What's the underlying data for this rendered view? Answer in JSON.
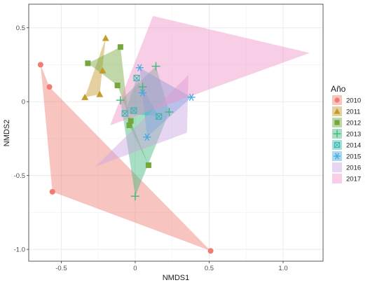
{
  "chart_data": {
    "type": "scatter",
    "title": "",
    "xlabel": "NMDS1",
    "ylabel": "NMDS2",
    "xlim": [
      -0.72,
      1.27
    ],
    "ylim": [
      -1.08,
      0.66
    ],
    "x_ticks": [
      -0.5,
      0.0,
      0.5,
      1.0
    ],
    "x_tick_labels": [
      "-0.5",
      "0",
      "0.5",
      "1.0"
    ],
    "y_ticks": [
      -1.0,
      -0.5,
      0.0,
      0.5
    ],
    "y_tick_labels": [
      "-1.0",
      "-0.5",
      "0",
      "0.5"
    ],
    "grid": true,
    "background": "#ffffff",
    "grid_color": "#ebebeb",
    "legend": {
      "title": "Año",
      "position": "right"
    },
    "series": [
      {
        "name": "2010",
        "color": "#f07c72",
        "marker": "circle",
        "points": [
          [
            -0.64,
            0.25
          ],
          [
            -0.58,
            0.1
          ],
          [
            -0.56,
            -0.61
          ],
          [
            0.51,
            -1.01
          ]
        ],
        "hull": [
          [
            -0.64,
            0.25
          ],
          [
            -0.56,
            -0.61
          ],
          [
            0.51,
            -1.01
          ],
          [
            -0.58,
            0.1
          ]
        ]
      },
      {
        "name": "2011",
        "color": "#c49a2a",
        "marker": "triangle",
        "points": [
          [
            -0.34,
            0.03
          ],
          [
            -0.24,
            0.05
          ],
          [
            -0.2,
            0.43
          ],
          [
            -0.22,
            0.21
          ]
        ],
        "hull": [
          [
            -0.34,
            0.03
          ],
          [
            -0.2,
            0.43
          ],
          [
            -0.24,
            0.05
          ]
        ]
      },
      {
        "name": "2012",
        "color": "#74a83c",
        "marker": "square",
        "points": [
          [
            -0.32,
            0.26
          ],
          [
            -0.1,
            0.37
          ],
          [
            -0.12,
            0.11
          ],
          [
            -0.04,
            -0.16
          ],
          [
            0.09,
            -0.43
          ],
          [
            -0.03,
            -0.13
          ]
        ],
        "hull": [
          [
            -0.32,
            0.26
          ],
          [
            -0.1,
            0.37
          ],
          [
            -0.04,
            -0.16
          ],
          [
            0.09,
            -0.43
          ],
          [
            -0.03,
            -0.13
          ],
          [
            -0.12,
            0.11
          ]
        ]
      },
      {
        "name": "2013",
        "color": "#3fb87c",
        "marker": "plus",
        "points": [
          [
            -0.1,
            0.01
          ],
          [
            0.14,
            0.24
          ],
          [
            0.23,
            -0.07
          ],
          [
            0.0,
            -0.64
          ],
          [
            0.05,
            0.1
          ]
        ],
        "hull": [
          [
            -0.1,
            0.01
          ],
          [
            0.14,
            0.24
          ],
          [
            0.23,
            -0.07
          ],
          [
            0.0,
            -0.64
          ]
        ]
      },
      {
        "name": "2014",
        "color": "#3cb8b0",
        "marker": "square-x",
        "points": [
          [
            -0.07,
            -0.08
          ],
          [
            0.01,
            0.16
          ],
          [
            0.16,
            -0.1
          ],
          [
            -0.01,
            -0.06
          ]
        ],
        "hull": [
          [
            -0.07,
            -0.08
          ],
          [
            0.01,
            0.16
          ],
          [
            0.16,
            -0.1
          ]
        ]
      },
      {
        "name": "2015",
        "color": "#47a8e0",
        "marker": "asterisk",
        "points": [
          [
            0.03,
            0.23
          ],
          [
            0.38,
            0.03
          ],
          [
            0.08,
            -0.24
          ],
          [
            0.05,
            0.06
          ]
        ],
        "hull": [
          [
            0.03,
            0.23
          ],
          [
            0.38,
            0.03
          ],
          [
            0.08,
            -0.24
          ]
        ]
      },
      {
        "name": "2016",
        "color": "#c9a3e0",
        "marker": "none",
        "points": [],
        "hull": [
          [
            -0.27,
            -0.44
          ],
          [
            0.36,
            0.18
          ],
          [
            0.35,
            -0.21
          ]
        ]
      },
      {
        "name": "2017",
        "color": "#f090c8",
        "marker": "none",
        "points": [],
        "hull": [
          [
            -0.17,
            -0.16
          ],
          [
            0.12,
            0.58
          ],
          [
            1.18,
            0.33
          ]
        ]
      }
    ]
  }
}
